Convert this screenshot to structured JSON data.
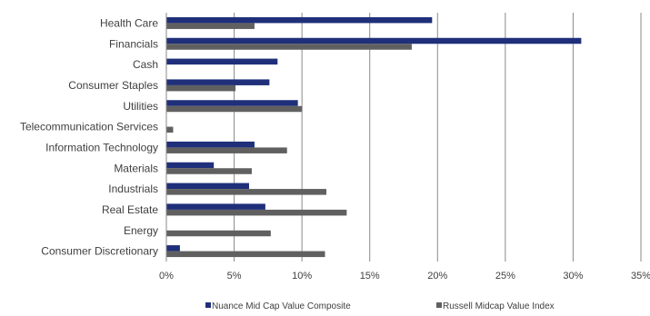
{
  "chart_data": {
    "type": "bar",
    "orientation": "horizontal",
    "categories": [
      "Health Care",
      "Financials",
      "Cash",
      "Consumer Staples",
      "Utilities",
      "Telecommunication Services",
      "Information Technology",
      "Materials",
      "Industrials",
      "Real Estate",
      "Energy",
      "Consumer Discretionary"
    ],
    "series": [
      {
        "name": "Nuance Mid Cap Value Composite",
        "color": "#1f2f7a",
        "values": [
          19.6,
          30.6,
          8.2,
          7.6,
          9.7,
          0,
          6.5,
          3.5,
          6.1,
          7.3,
          0,
          1.0
        ]
      },
      {
        "name": "Russell Midcap Value Index",
        "color": "#606060",
        "values": [
          6.5,
          18.1,
          0,
          5.1,
          10.0,
          0.5,
          8.9,
          6.3,
          11.8,
          13.3,
          7.7,
          11.7
        ]
      }
    ],
    "xlim": [
      0,
      35
    ],
    "xticks": [
      0,
      5,
      10,
      15,
      20,
      25,
      30,
      35
    ],
    "xtick_labels": [
      "0%",
      "5%",
      "10%",
      "15%",
      "20%",
      "25%",
      "30%",
      "35%"
    ],
    "grid": true,
    "legend_position": "bottom",
    "title": "",
    "xlabel": "",
    "ylabel": ""
  }
}
